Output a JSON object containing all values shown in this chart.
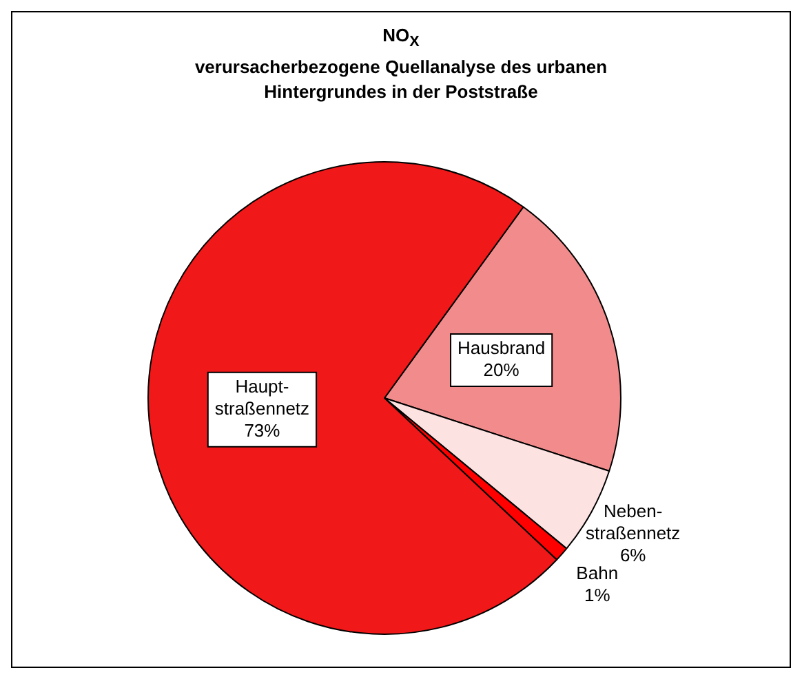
{
  "chart_data": {
    "type": "pie",
    "title": "NO$_{X}$\nverursacherbezogene Quellanalyse des urbanen\nHintergrundes in der Poststraße",
    "categories": [
      "Hausbrand",
      "Neben-straßennetz",
      "Bahn",
      "Haupt-straßennetz"
    ],
    "values": [
      20,
      6,
      1,
      73
    ],
    "colors": [
      "#f28c8c",
      "#fde2e2",
      "#ff0000",
      "#f01818"
    ],
    "value_labels": [
      "20%",
      "6%",
      "1%",
      "73%"
    ],
    "legend": false
  }
}
